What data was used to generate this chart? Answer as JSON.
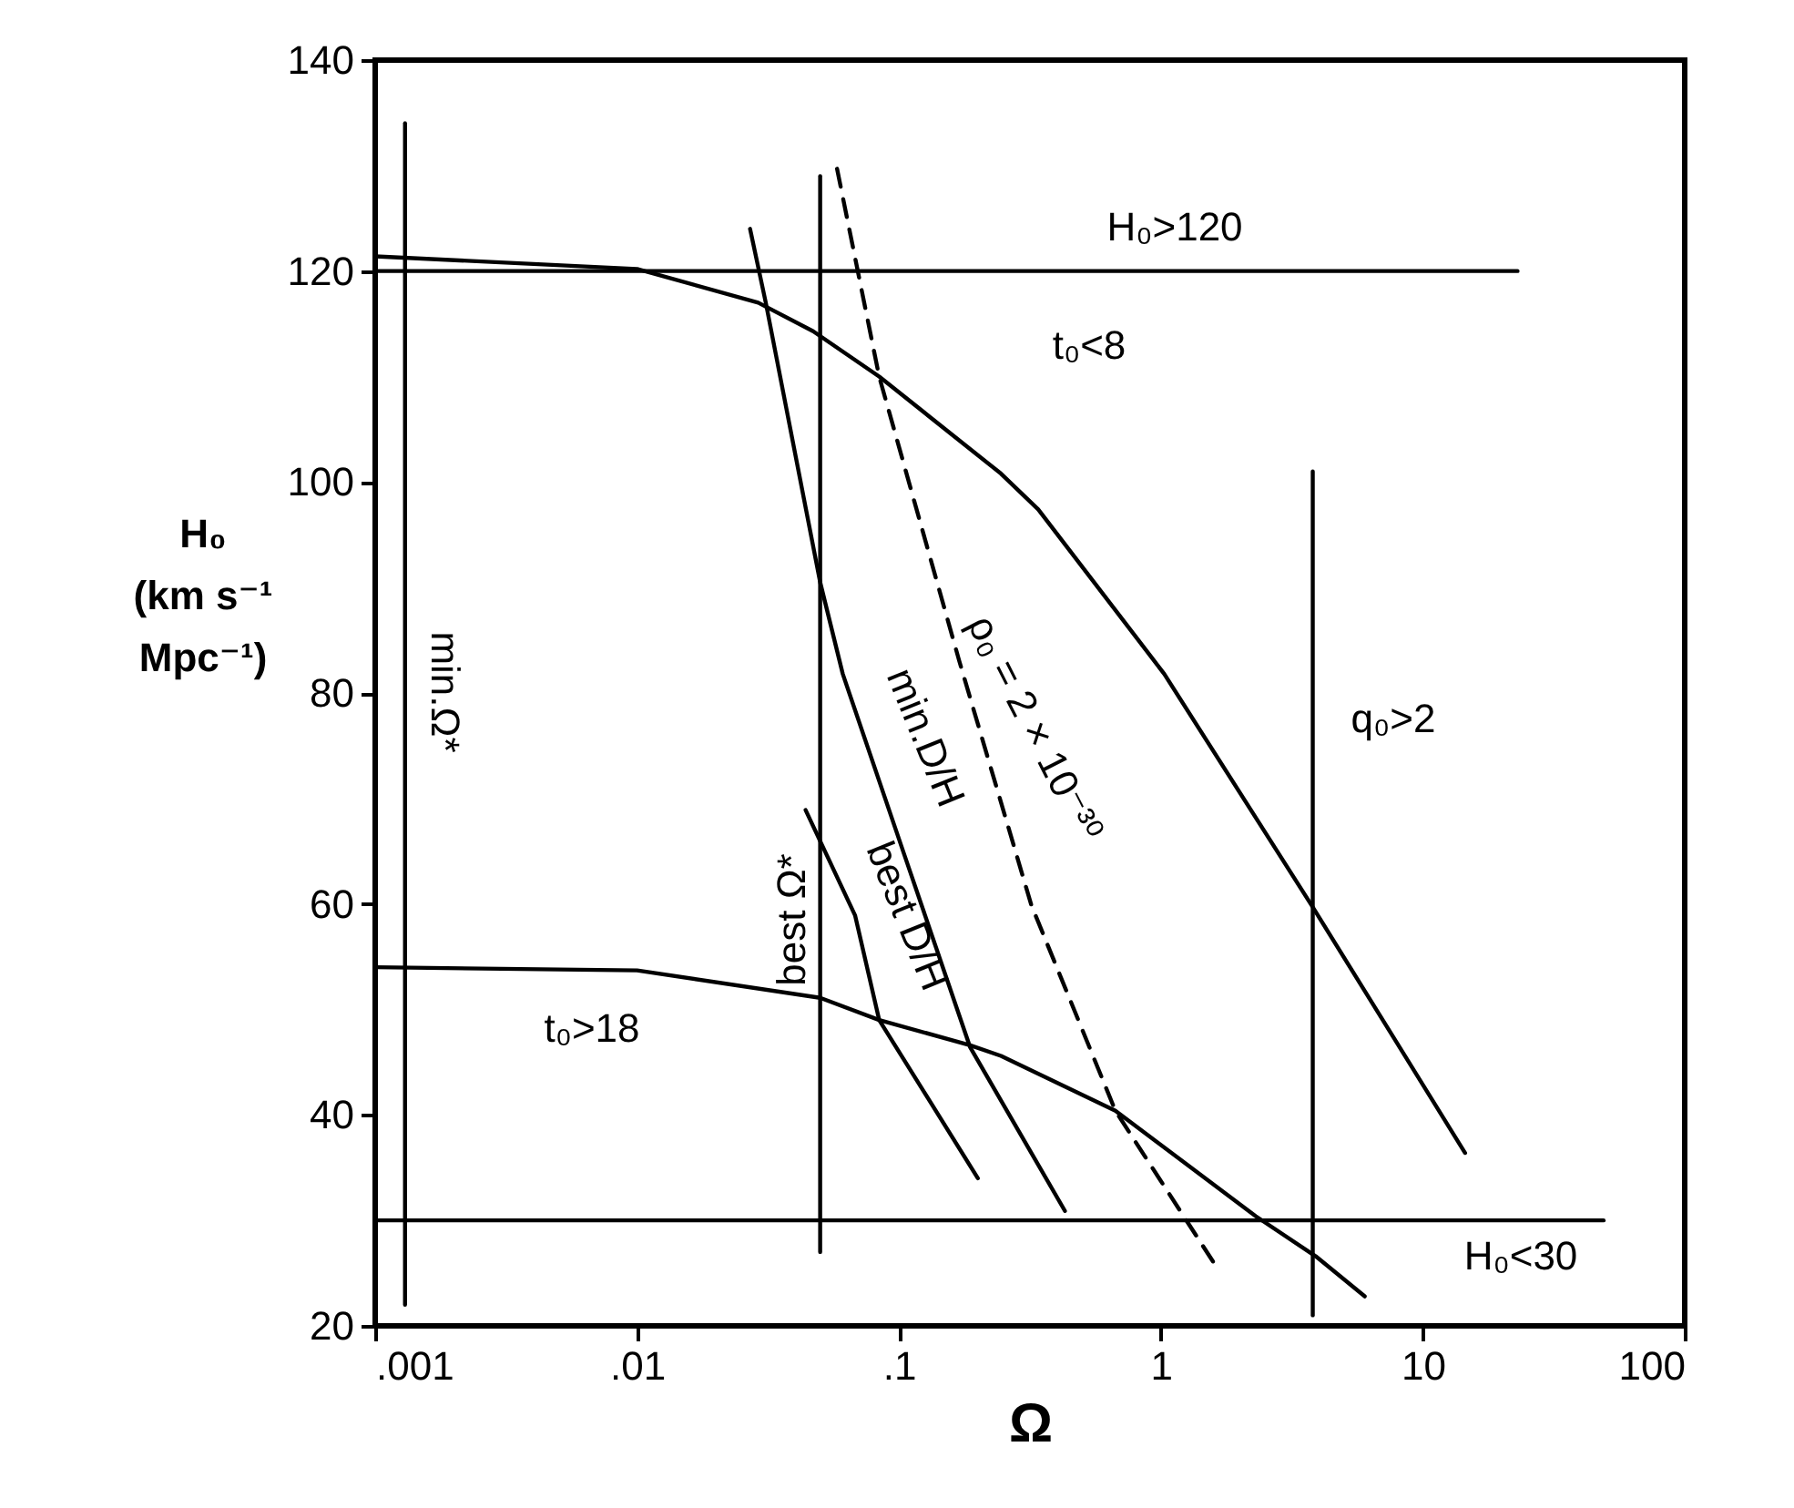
{
  "chart_data": {
    "type": "line",
    "xlabel": "Ω",
    "ylabel": "H₀ (km s⁻¹ Mpc⁻¹)",
    "log": "x",
    "grid": false,
    "marker": "none",
    "xlim": [
      0.001,
      100
    ],
    "ylim": [
      20,
      140
    ],
    "xticks": [
      {
        "value": 0.001,
        "label": ".001"
      },
      {
        "value": 0.01,
        "label": ".01"
      },
      {
        "value": 0.1,
        "label": ".1"
      },
      1,
      10,
      100
    ],
    "yticks": [
      20,
      40,
      60,
      80,
      100,
      120,
      140
    ],
    "series": [
      {
        "color": "#000000",
        "x": [
          0.0013,
          0.0013
        ],
        "values": [
          134,
          22
        ]
      },
      {
        "color": "#000000",
        "x": [
          0.001,
          23
        ],
        "values": [
          120,
          120
        ]
      },
      {
        "color": "#000000",
        "x": [
          0.001,
          49
        ],
        "values": [
          30,
          30
        ]
      },
      {
        "color": "#000000",
        "x": [
          0.05,
          0.05
        ],
        "values": [
          129,
          27
        ]
      },
      {
        "color": "#000000",
        "x": [
          3.8,
          3.8
        ],
        "values": [
          101,
          21
        ]
      },
      {
        "color": "#000000",
        "x": [
          0.001,
          0.01,
          0.029,
          0.047,
          0.084,
          0.245,
          0.34,
          1.03,
          3.8,
          14.5
        ],
        "values": [
          121.4,
          120.2,
          117,
          114.3,
          110,
          100.8,
          97.4,
          81.8,
          59.7,
          36.4
        ]
      },
      {
        "color": "#000000",
        "x": [
          0.001,
          0.01,
          0.05,
          0.084,
          0.187,
          0.245,
          0.67,
          2.3,
          3.9,
          6.0
        ],
        "values": [
          54,
          53.7,
          51.1,
          49,
          46.6,
          45.6,
          40.4,
          30.4,
          26.6,
          22.8
        ]
      },
      {
        "color": "#000000",
        "x": [
          0.027,
          0.031,
          0.05,
          0.061,
          0.105,
          0.187,
          0.43
        ],
        "values": [
          124,
          117,
          90.5,
          81.8,
          64.6,
          46.4,
          30.9
        ]
      },
      {
        "color": "#000000",
        "x": [
          0.044,
          0.068,
          0.084,
          0.2
        ],
        "values": [
          68.9,
          58.9,
          49,
          34
        ]
      },
      {
        "color": "#000000",
        "line_style": "dashed",
        "x": [
          0.058,
          0.084,
          0.17,
          0.32,
          0.67,
          1.59
        ],
        "values": [
          129.7,
          110,
          83,
          59.9,
          40.4,
          26
        ]
      }
    ],
    "annotations": [
      "H₀>120",
      "t₀<8",
      "t₀>18",
      "H₀<30",
      "q₀>2",
      "min.Ω*",
      "best Ω*",
      "best D/H",
      "min.D/H",
      "ρ₀ = 2 × 10⁻³⁰"
    ]
  }
}
